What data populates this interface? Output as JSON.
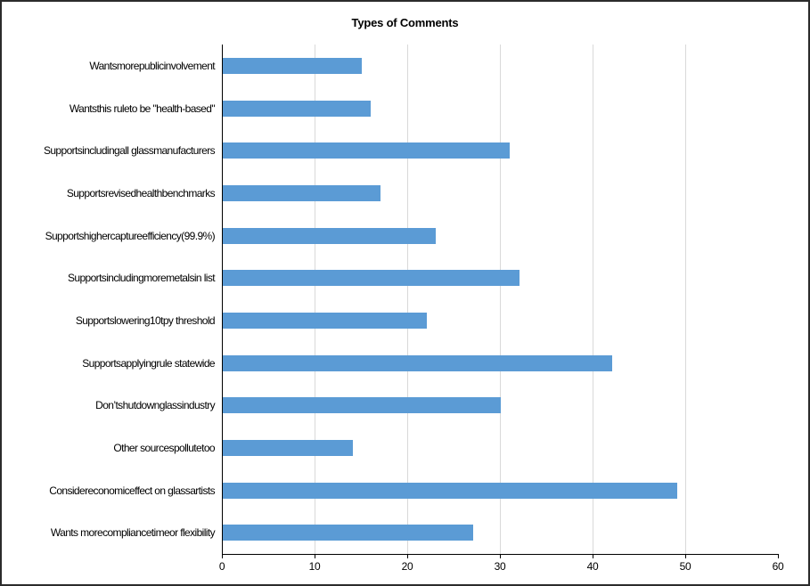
{
  "chart_data": {
    "type": "bar",
    "orientation": "horizontal",
    "title": "Types of Comments",
    "categories": [
      "Wantsmorepublicinvolvement",
      "Wantsthis ruleto be \"health-based\"",
      "Supportsincludingall glassmanufacturers",
      "Supportsrevisedhealthbenchmarks",
      "Supportshighercaptureefficiency(99.9%)",
      "Supportsincludingmoremetalsin list",
      "Supportslowering10tpy threshold",
      "Supportsapplyingrule statewide",
      "Don’tshutdownglassindustry",
      "Other sourcespollutetoo",
      "Considereconomiceffect on glassartists",
      "Wants morecompliancetimeor flexibility"
    ],
    "values": [
      15,
      16,
      31,
      17,
      23,
      32,
      22,
      42,
      30,
      14,
      49,
      27
    ],
    "xlabel": "",
    "ylabel": "",
    "xlim": [
      0,
      60
    ],
    "x_ticks": [
      0,
      10,
      20,
      30,
      40,
      50,
      60
    ],
    "gridline_ticks": [
      10,
      20,
      30,
      40,
      50
    ],
    "grid": "vertical-major",
    "legend": "none",
    "bar_color": "#5b9bd5",
    "gridline_color": "#d9d9d9",
    "axis_color": "#000000",
    "text_color": "#000000"
  }
}
